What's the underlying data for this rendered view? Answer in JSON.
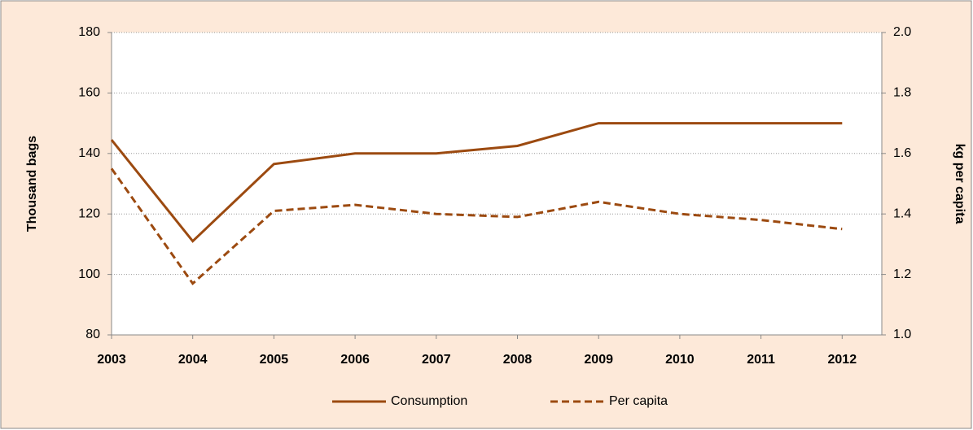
{
  "chart_data": {
    "type": "line",
    "y_label": "Thousand bags",
    "y2_label": "kg per capita",
    "categories": [
      "2003",
      "2004",
      "2005",
      "2006",
      "2007",
      "2008",
      "2009",
      "2010",
      "2011",
      "2012"
    ],
    "series": [
      {
        "name": "Consumption",
        "color": "#9c4a10",
        "dash": false,
        "values": [
          144.5,
          111,
          136.5,
          140,
          140,
          142.5,
          150,
          150,
          150,
          150
        ]
      },
      {
        "name": "Per capita",
        "color": "#9c4a10",
        "dash": true,
        "axis": "y2",
        "values": [
          1.55,
          1.17,
          1.41,
          1.43,
          1.4,
          1.39,
          1.44,
          1.4,
          1.38,
          1.35
        ]
      }
    ],
    "ylim": [
      80,
      180
    ],
    "yticks": [
      80,
      100,
      120,
      140,
      160,
      180
    ],
    "y2lim": [
      1.0,
      2.0
    ],
    "y2ticks": [
      {
        "value": 1.0,
        "label": "1.0"
      },
      1.2,
      1.4,
      1.6,
      1.8,
      {
        "value": 2.0,
        "label": "2.0"
      }
    ],
    "grid": true,
    "legend": "bottom"
  }
}
